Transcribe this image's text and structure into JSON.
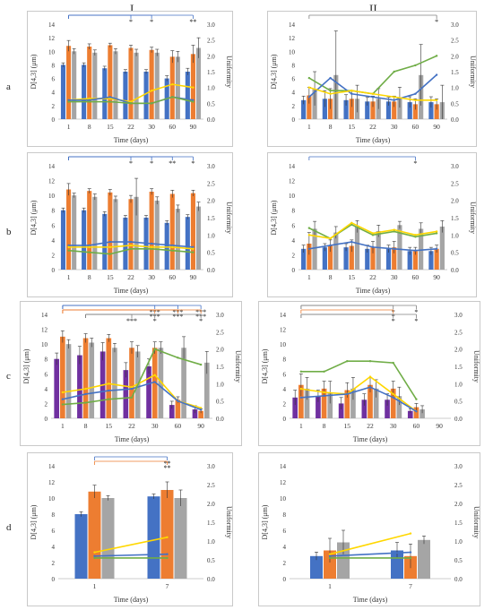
{
  "columns": [
    "I",
    "II"
  ],
  "rows": [
    "a",
    "b",
    "c",
    "d"
  ],
  "colors": {
    "blue": "#4472C4",
    "orange": "#ED7D31",
    "gray": "#A5A5A5",
    "yellow": "#FFD700",
    "green": "#70AD47",
    "purple": "#7030A0",
    "pink": "#E8A0A0",
    "olive": "#A8A030",
    "bracket_blue": "#4472C4",
    "bracket_orange": "#ED7D31",
    "bracket_gray": "#808080"
  },
  "axis": {
    "ylabel_left": "D[4,3] (μm)",
    "ylabel_right": "Uniformity",
    "xlabel": "Time (days)",
    "left_ticks": [
      "0",
      "2",
      "4",
      "6",
      "8",
      "10",
      "12",
      "14"
    ],
    "right_ticks": [
      "0.0",
      "0.5",
      "1.0",
      "1.5",
      "2.0",
      "2.5",
      "3.0"
    ]
  },
  "chart_data": [
    {
      "id": "I-a",
      "type": "bar",
      "ylim": [
        0,
        14
      ],
      "ylim_right": [
        0,
        3
      ],
      "categories": [
        "1",
        "8",
        "15",
        "22",
        "30",
        "60",
        "90"
      ],
      "bar_series": [
        {
          "name": "",
          "color": "blue",
          "values": [
            8,
            8,
            7.5,
            7,
            7,
            6,
            7
          ],
          "err": [
            0.3,
            0.3,
            0.3,
            0.3,
            0.3,
            0.4,
            0.5
          ]
        },
        {
          "name": "",
          "color": "orange",
          "values": [
            10.8,
            10.7,
            10.9,
            10.5,
            10.2,
            9.2,
            9.6
          ],
          "err": [
            0.8,
            0.4,
            0.3,
            0.4,
            0.4,
            0.9,
            1.3
          ]
        },
        {
          "name": "",
          "color": "gray",
          "values": [
            10,
            9.8,
            10,
            9.8,
            9.8,
            9.2,
            10.5
          ],
          "err": [
            0.4,
            0.4,
            0.4,
            0.5,
            0.5,
            0.8,
            1.5
          ]
        }
      ],
      "line_series": [
        {
          "name": "",
          "color": "yellow",
          "values": [
            0.6,
            0.65,
            0.65,
            0.55,
            0.9,
            1.1,
            1.0
          ]
        },
        {
          "name": "",
          "color": "blue",
          "values": [
            0.6,
            0.6,
            0.7,
            0.5,
            0.5,
            0.7,
            0.6
          ]
        },
        {
          "name": "",
          "color": "green",
          "values": [
            0.55,
            0.55,
            0.55,
            0.5,
            0.5,
            0.7,
            0.55
          ]
        }
      ],
      "annotations": [
        {
          "from": 0,
          "to": 3,
          "level": 0,
          "color": "bracket_blue",
          "label": "*"
        },
        {
          "from": 0,
          "to": 4,
          "level": 0,
          "color": "bracket_blue",
          "label": "*"
        },
        {
          "from": 0,
          "to": 6,
          "level": 0,
          "color": "bracket_blue",
          "label": "**"
        }
      ]
    },
    {
      "id": "II-a",
      "type": "bar",
      "ylim": [
        0,
        14
      ],
      "ylim_right": [
        0,
        3
      ],
      "categories": [
        "1",
        "8",
        "15",
        "22",
        "30",
        "60",
        "90"
      ],
      "bar_series": [
        {
          "name": "",
          "color": "blue",
          "values": [
            2.8,
            3,
            2.8,
            2.6,
            2.6,
            2.5,
            2.5
          ],
          "err": [
            0.6,
            1.2,
            0.8,
            0.6,
            0.6,
            0.8,
            0.8
          ]
        },
        {
          "name": "",
          "color": "orange",
          "values": [
            3.5,
            3,
            3,
            2.6,
            2.6,
            2.2,
            2.2
          ],
          "err": [
            1.2,
            1.5,
            1.2,
            0.8,
            0.8,
            0.8,
            0.8
          ]
        },
        {
          "name": "",
          "color": "gray",
          "values": [
            4.5,
            6.5,
            3,
            3,
            3.2,
            6.5,
            2.5
          ],
          "err": [
            2.5,
            6.5,
            2,
            1.5,
            1.5,
            4.5,
            2.5
          ]
        }
      ],
      "line_series": [
        {
          "name": "",
          "color": "green",
          "values": [
            1.3,
            0.9,
            0.9,
            0.8,
            1.5,
            1.7,
            2.0
          ]
        },
        {
          "name": "",
          "color": "blue",
          "values": [
            0.7,
            1.3,
            0.8,
            0.7,
            0.6,
            0.8,
            1.4
          ]
        },
        {
          "name": "",
          "color": "yellow",
          "values": [
            1.0,
            0.8,
            0.9,
            0.8,
            0.7,
            0.6,
            0.6
          ]
        }
      ],
      "annotations": [
        {
          "from": 0,
          "to": 6,
          "level": 0,
          "color": "bracket_gray",
          "label": "*"
        }
      ]
    },
    {
      "id": "I-b",
      "type": "bar",
      "ylim": [
        0,
        14
      ],
      "ylim_right": [
        0,
        3
      ],
      "categories": [
        "1",
        "8",
        "15",
        "22",
        "30",
        "60",
        "90"
      ],
      "bar_series": [
        {
          "name": "",
          "color": "blue",
          "values": [
            8,
            8,
            7.5,
            7,
            7,
            6.3,
            7.1
          ],
          "err": [
            0.3,
            0.3,
            0.3,
            0.3,
            0.3,
            0.3,
            0.3
          ]
        },
        {
          "name": "",
          "color": "orange",
          "values": [
            10.8,
            10.6,
            10.4,
            9.5,
            10.5,
            10.2,
            10.3
          ],
          "err": [
            0.8,
            0.3,
            0.4,
            0.5,
            0.4,
            0.5,
            0.4
          ]
        },
        {
          "name": "",
          "color": "gray",
          "values": [
            10,
            9.8,
            9.5,
            9.8,
            9.3,
            8.2,
            8.5
          ],
          "err": [
            0.3,
            0.4,
            0.4,
            2.5,
            0.5,
            0.5,
            0.6
          ]
        }
      ],
      "line_series": [
        {
          "name": "",
          "color": "blue",
          "values": [
            0.7,
            0.7,
            0.8,
            0.8,
            0.75,
            0.7,
            0.65
          ]
        },
        {
          "name": "",
          "color": "green",
          "values": [
            0.55,
            0.5,
            0.45,
            0.6,
            0.6,
            0.55,
            0.5
          ]
        },
        {
          "name": "",
          "color": "yellow",
          "values": [
            0.65,
            0.65,
            0.65,
            0.7,
            0.65,
            0.65,
            0.6
          ]
        }
      ],
      "annotations": [
        {
          "from": 0,
          "to": 3,
          "level": 0,
          "color": "bracket_blue",
          "label": "*"
        },
        {
          "from": 0,
          "to": 4,
          "level": 0,
          "color": "bracket_blue",
          "label": "*"
        },
        {
          "from": 0,
          "to": 5,
          "level": 0,
          "color": "bracket_blue",
          "label": "**"
        },
        {
          "from": 0,
          "to": 6,
          "level": 0,
          "color": "bracket_blue",
          "label": "*"
        }
      ]
    },
    {
      "id": "II-b",
      "type": "bar",
      "ylim": [
        0,
        14
      ],
      "ylim_right": [
        0,
        3
      ],
      "categories": [
        "1",
        "8",
        "15",
        "22",
        "30",
        "60",
        "90"
      ],
      "bar_series": [
        {
          "name": "",
          "color": "blue",
          "values": [
            2.8,
            3,
            3,
            2.8,
            2.8,
            2.5,
            2.5
          ],
          "err": [
            0.5,
            0.5,
            0.5,
            0.5,
            0.5,
            0.5,
            0.5
          ]
        },
        {
          "name": "",
          "color": "orange",
          "values": [
            3.5,
            3.2,
            3.2,
            3,
            3,
            2.5,
            2.8
          ],
          "err": [
            1.5,
            0.8,
            0.8,
            0.8,
            0.8,
            0.5,
            0.5
          ]
        },
        {
          "name": "",
          "color": "gray",
          "values": [
            5.5,
            5,
            5.8,
            5.2,
            6,
            5.5,
            5.8
          ],
          "err": [
            1,
            0.8,
            0.8,
            0.8,
            0.5,
            0.8,
            0.8
          ]
        }
      ],
      "line_series": [
        {
          "name": "",
          "color": "green",
          "values": [
            1.2,
            0.9,
            1.3,
            1.0,
            1.1,
            0.95,
            1.05
          ]
        },
        {
          "name": "",
          "color": "yellow",
          "values": [
            1.0,
            0.9,
            1.35,
            1.05,
            1.15,
            1.0,
            1.1
          ]
        },
        {
          "name": "",
          "color": "blue",
          "values": [
            0.6,
            0.7,
            0.8,
            0.65,
            0.6,
            0.55,
            0.6
          ]
        }
      ],
      "annotations": [
        {
          "from": 0,
          "to": 5,
          "level": 0,
          "color": "bracket_blue",
          "label": "*"
        }
      ]
    },
    {
      "id": "I-c",
      "type": "bar",
      "ylim": [
        0,
        14
      ],
      "ylim_right": [
        0,
        3
      ],
      "categories": [
        "1",
        "8",
        "15",
        "22",
        "30",
        "60",
        "90"
      ],
      "bar_series": [
        {
          "name": "",
          "color": "purple",
          "values": [
            8,
            8.5,
            9,
            6.5,
            7,
            1.8,
            1.2
          ],
          "err": [
            0.8,
            1.2,
            1.2,
            1,
            1,
            0.5,
            0.5
          ]
        },
        {
          "name": "",
          "color": "orange",
          "values": [
            11,
            10.8,
            10.8,
            9.5,
            9.5,
            2.5,
            1.0
          ],
          "err": [
            0.8,
            0.6,
            0.5,
            0.8,
            0.8,
            0.4,
            0.3
          ]
        },
        {
          "name": "",
          "color": "gray",
          "values": [
            10,
            10.2,
            9.5,
            9,
            9.5,
            9.5,
            7.5
          ],
          "err": [
            0.6,
            0.6,
            0.6,
            0.8,
            0.8,
            1.5,
            1.5
          ]
        }
      ],
      "line_series": [
        {
          "name": "",
          "color": "yellow",
          "values": [
            0.75,
            0.85,
            1.0,
            0.9,
            1.25,
            0.5,
            0.3
          ]
        },
        {
          "name": "",
          "color": "blue",
          "values": [
            0.55,
            0.7,
            0.8,
            0.85,
            1.05,
            0.5,
            0.25
          ]
        },
        {
          "name": "",
          "color": "green",
          "values": [
            0.4,
            0.45,
            0.55,
            0.6,
            2.0,
            1.75,
            1.55
          ]
        }
      ],
      "annotations": [
        {
          "from": 0,
          "to": 4,
          "level": 0,
          "color": "bracket_blue",
          "label": "***"
        },
        {
          "from": 0,
          "to": 5,
          "level": 0,
          "color": "bracket_blue",
          "label": "***"
        },
        {
          "from": 0,
          "to": 6,
          "level": 0,
          "color": "bracket_blue",
          "label": "***"
        },
        {
          "from": 0,
          "to": 4,
          "level": 1,
          "color": "bracket_orange",
          "label": "***"
        },
        {
          "from": 0,
          "to": 5,
          "level": 1,
          "color": "bracket_orange",
          "label": "***"
        },
        {
          "from": 0,
          "to": 6,
          "level": 1,
          "color": "bracket_orange",
          "label": "***"
        },
        {
          "from": 1,
          "to": 3,
          "level": 2,
          "color": "bracket_gray",
          "label": "***"
        },
        {
          "from": 1,
          "to": 4,
          "level": 2,
          "color": "bracket_gray",
          "label": "*"
        },
        {
          "from": 1,
          "to": 6,
          "level": 2,
          "color": "bracket_gray",
          "label": "*"
        }
      ]
    },
    {
      "id": "II-c",
      "type": "bar",
      "ylim": [
        0,
        14
      ],
      "ylim_right": [
        0,
        3
      ],
      "categories": [
        "1",
        "8",
        "15",
        "22",
        "30",
        "60",
        "90"
      ],
      "bar_series": [
        {
          "name": "",
          "color": "purple",
          "values": [
            2.8,
            3,
            2,
            2.5,
            2.5,
            1,
            0
          ],
          "err": [
            1,
            0.8,
            0.8,
            0.8,
            0.8,
            0.3,
            0
          ]
        },
        {
          "name": "",
          "color": "orange",
          "values": [
            4.5,
            4,
            3.8,
            4.5,
            4,
            1.5,
            0
          ],
          "err": [
            1.5,
            1,
            1,
            1,
            1,
            0.5,
            0
          ]
        },
        {
          "name": "",
          "color": "gray",
          "values": [
            4,
            3.5,
            4,
            4,
            3,
            1.2,
            0
          ],
          "err": [
            1.5,
            1.5,
            1.5,
            1.2,
            1.2,
            0.5,
            0
          ]
        }
      ],
      "line_series": [
        {
          "name": "",
          "color": "green",
          "values": [
            1.35,
            1.35,
            1.65,
            1.65,
            1.6,
            0.55,
            0
          ]
        },
        {
          "name": "",
          "color": "yellow",
          "values": [
            0.85,
            0.75,
            0.7,
            1.2,
            0.7,
            0.2,
            0
          ]
        },
        {
          "name": "",
          "color": "blue",
          "values": [
            0.6,
            0.65,
            0.7,
            0.9,
            0.6,
            0.2,
            0
          ]
        }
      ],
      "annotations": [
        {
          "from": 0,
          "to": 4,
          "level": 0,
          "color": "bracket_gray",
          "label": "*"
        },
        {
          "from": 0,
          "to": 5,
          "level": 0,
          "color": "bracket_gray",
          "label": "*"
        },
        {
          "from": 0,
          "to": 4,
          "level": 1,
          "color": "bracket_orange",
          "label": "*"
        },
        {
          "from": 0,
          "to": 4,
          "level": 2,
          "color": "bracket_gray",
          "label": "*"
        },
        {
          "from": 0,
          "to": 5,
          "level": 2,
          "color": "bracket_gray",
          "label": "*"
        }
      ]
    },
    {
      "id": "I-d",
      "type": "bar",
      "ylim": [
        0,
        14
      ],
      "ylim_right": [
        0,
        3
      ],
      "categories": [
        "1",
        "7"
      ],
      "bar_series": [
        {
          "name": "",
          "color": "blue",
          "values": [
            8,
            10.2
          ],
          "err": [
            0.3,
            0.3
          ]
        },
        {
          "name": "",
          "color": "orange",
          "values": [
            10.8,
            11
          ],
          "err": [
            0.8,
            1
          ]
        },
        {
          "name": "",
          "color": "gray",
          "values": [
            10,
            10
          ],
          "err": [
            0.3,
            1
          ]
        }
      ],
      "line_series": [
        {
          "name": "",
          "color": "yellow",
          "values": [
            0.7,
            1.1
          ]
        },
        {
          "name": "",
          "color": "blue",
          "values": [
            0.6,
            0.65
          ]
        },
        {
          "name": "",
          "color": "green",
          "values": [
            0.55,
            0.55
          ]
        }
      ],
      "annotations": [
        {
          "from": 0,
          "to": 1,
          "level": 0,
          "color": "bracket_blue",
          "label": "**"
        },
        {
          "from": 0,
          "to": 1,
          "level": 1,
          "color": "bracket_orange",
          "label": "**"
        }
      ]
    },
    {
      "id": "II-d",
      "type": "bar",
      "ylim": [
        0,
        14
      ],
      "ylim_right": [
        0,
        3
      ],
      "categories": [
        "1",
        "7"
      ],
      "bar_series": [
        {
          "name": "",
          "color": "blue",
          "values": [
            2.8,
            3.5
          ],
          "err": [
            0.5,
            1
          ]
        },
        {
          "name": "",
          "color": "orange",
          "values": [
            3.5,
            2.8
          ],
          "err": [
            1.5,
            1.5
          ]
        },
        {
          "name": "",
          "color": "gray",
          "values": [
            4.5,
            4.8
          ],
          "err": [
            1.5,
            0.5
          ]
        }
      ],
      "line_series": [
        {
          "name": "",
          "color": "yellow",
          "values": [
            0.65,
            1.2
          ]
        },
        {
          "name": "",
          "color": "blue",
          "values": [
            0.6,
            0.7
          ]
        },
        {
          "name": "",
          "color": "green",
          "values": [
            0.55,
            0.55
          ]
        }
      ],
      "annotations": []
    }
  ]
}
